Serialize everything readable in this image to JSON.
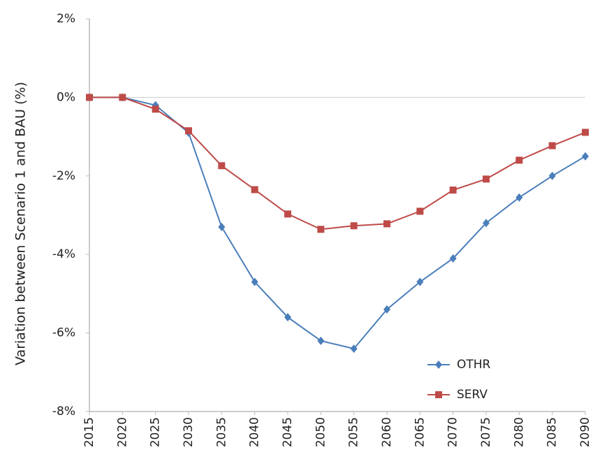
{
  "chart_data": {
    "type": "line",
    "y_label": "Variation between Scenario 1 and BAU (%)",
    "x": [
      2015,
      2020,
      2025,
      2030,
      2035,
      2040,
      2045,
      2050,
      2055,
      2060,
      2065,
      2070,
      2075,
      2080,
      2085,
      2090
    ],
    "xlim": [
      2015,
      2090
    ],
    "xticks": [
      2015,
      2020,
      2025,
      2030,
      2035,
      2040,
      2045,
      2050,
      2055,
      2060,
      2065,
      2070,
      2075,
      2080,
      2085,
      2090
    ],
    "ylim": [
      -8,
      2
    ],
    "yticks": [
      {
        "value": -8,
        "label": "-8%"
      },
      {
        "value": -6,
        "label": "-6%"
      },
      {
        "value": -4,
        "label": "-4%"
      },
      {
        "value": -2,
        "label": "-2%"
      },
      {
        "value": 0,
        "label": "0%"
      },
      {
        "value": 2,
        "label": "2%"
      }
    ],
    "grid": false,
    "legend": "lower right",
    "series": [
      {
        "name": "OTHR",
        "color": "#4a7ebb",
        "marker": "diamond",
        "values": [
          0,
          0,
          -0.2,
          -0.9,
          -3.3,
          -4.7,
          -5.6,
          -6.2,
          -6.4,
          -5.4,
          -4.7,
          -4.1,
          -3.2,
          -2.55,
          -2.0,
          -1.5
        ]
      },
      {
        "name": "SERV",
        "color": "#be4b48",
        "marker": "square",
        "values": [
          0,
          0,
          -0.3,
          -0.85,
          -1.74,
          -2.35,
          -2.97,
          -3.36,
          -3.27,
          -3.22,
          -2.9,
          -2.36,
          -2.08,
          -1.6,
          -1.23,
          -0.89
        ]
      }
    ]
  }
}
